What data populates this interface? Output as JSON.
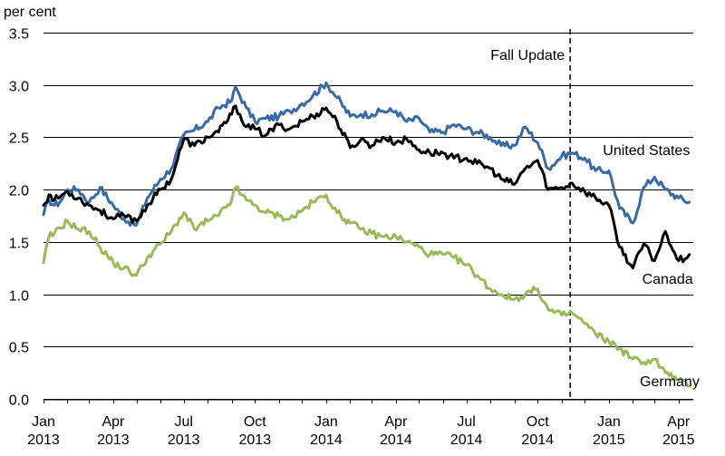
{
  "chart_data": {
    "type": "line",
    "title": "",
    "ylabel": "per cent",
    "xlabel": "",
    "ylim": [
      0,
      3.5
    ],
    "y_ticks": [
      "0.0",
      "0.5",
      "1.0",
      "1.5",
      "2.0",
      "2.5",
      "3.0",
      "3.5"
    ],
    "y_tick_values": [
      0,
      0.5,
      1.0,
      1.5,
      2.0,
      2.5,
      3.0,
      3.5
    ],
    "grid": "horizontal",
    "x_range": [
      "2013-01",
      "2015-04"
    ],
    "x_ticks": [
      {
        "month": "Jan",
        "year": "2013",
        "date": "2013-01"
      },
      {
        "month": "Apr",
        "year": "2013",
        "date": "2013-04"
      },
      {
        "month": "Jul",
        "year": "2013",
        "date": "2013-07"
      },
      {
        "month": "Oct",
        "year": "2013",
        "date": "2013-10"
      },
      {
        "month": "Jan",
        "year": "2014",
        "date": "2014-01"
      },
      {
        "month": "Apr",
        "year": "2014",
        "date": "2014-04"
      },
      {
        "month": "Jul",
        "year": "2014",
        "date": "2014-07"
      },
      {
        "month": "Oct",
        "year": "2014",
        "date": "2014-10"
      },
      {
        "month": "Jan",
        "year": "2015",
        "date": "2015-01"
      },
      {
        "month": "Apr",
        "year": "2015",
        "date": "2015-04"
      }
    ],
    "annotation": {
      "label": "Fall Update",
      "date": "2014-11-12"
    },
    "series": [
      {
        "name": "United States",
        "color": "#3a6aa6",
        "points": [
          [
            "2013-01-01",
            1.76
          ],
          [
            "2013-01-08",
            1.9
          ],
          [
            "2013-01-15",
            1.85
          ],
          [
            "2013-01-22",
            1.88
          ],
          [
            "2013-02-01",
            2.0
          ],
          [
            "2013-02-15",
            2.0
          ],
          [
            "2013-03-01",
            1.88
          ],
          [
            "2013-03-15",
            2.02
          ],
          [
            "2013-04-01",
            1.85
          ],
          [
            "2013-04-15",
            1.72
          ],
          [
            "2013-05-01",
            1.66
          ],
          [
            "2013-05-15",
            1.92
          ],
          [
            "2013-06-01",
            2.1
          ],
          [
            "2013-06-15",
            2.2
          ],
          [
            "2013-07-01",
            2.52
          ],
          [
            "2013-07-15",
            2.57
          ],
          [
            "2013-08-01",
            2.65
          ],
          [
            "2013-08-15",
            2.78
          ],
          [
            "2013-09-01",
            2.85
          ],
          [
            "2013-09-06",
            2.98
          ],
          [
            "2013-09-20",
            2.78
          ],
          [
            "2013-10-01",
            2.65
          ],
          [
            "2013-10-15",
            2.68
          ],
          [
            "2013-11-01",
            2.7
          ],
          [
            "2013-11-15",
            2.75
          ],
          [
            "2013-12-01",
            2.82
          ],
          [
            "2013-12-15",
            2.9
          ],
          [
            "2014-01-01",
            3.02
          ],
          [
            "2014-01-15",
            2.88
          ],
          [
            "2014-02-01",
            2.7
          ],
          [
            "2014-02-15",
            2.72
          ],
          [
            "2014-03-01",
            2.72
          ],
          [
            "2014-03-15",
            2.75
          ],
          [
            "2014-04-01",
            2.75
          ],
          [
            "2014-04-15",
            2.65
          ],
          [
            "2014-05-01",
            2.68
          ],
          [
            "2014-05-15",
            2.55
          ],
          [
            "2014-06-01",
            2.55
          ],
          [
            "2014-06-15",
            2.62
          ],
          [
            "2014-07-01",
            2.58
          ],
          [
            "2014-07-15",
            2.55
          ],
          [
            "2014-08-01",
            2.5
          ],
          [
            "2014-08-15",
            2.42
          ],
          [
            "2014-09-01",
            2.42
          ],
          [
            "2014-09-15",
            2.6
          ],
          [
            "2014-10-01",
            2.45
          ],
          [
            "2014-10-15",
            2.2
          ],
          [
            "2014-11-01",
            2.32
          ],
          [
            "2014-11-15",
            2.35
          ],
          [
            "2014-12-01",
            2.3
          ],
          [
            "2014-12-15",
            2.18
          ],
          [
            "2015-01-01",
            2.18
          ],
          [
            "2015-01-15",
            1.82
          ],
          [
            "2015-02-01",
            1.68
          ],
          [
            "2015-02-15",
            2.02
          ],
          [
            "2015-03-01",
            2.12
          ],
          [
            "2015-03-15",
            2.0
          ],
          [
            "2015-04-01",
            1.92
          ],
          [
            "2015-04-15",
            1.88
          ]
        ]
      },
      {
        "name": "Canada",
        "color": "#000000",
        "points": [
          [
            "2013-01-01",
            1.85
          ],
          [
            "2013-01-08",
            1.95
          ],
          [
            "2013-01-15",
            1.9
          ],
          [
            "2013-02-01",
            1.98
          ],
          [
            "2013-02-15",
            1.92
          ],
          [
            "2013-03-01",
            1.85
          ],
          [
            "2013-03-15",
            1.8
          ],
          [
            "2013-04-01",
            1.72
          ],
          [
            "2013-04-15",
            1.75
          ],
          [
            "2013-05-01",
            1.7
          ],
          [
            "2013-05-15",
            1.85
          ],
          [
            "2013-06-01",
            2.0
          ],
          [
            "2013-06-15",
            2.1
          ],
          [
            "2013-07-01",
            2.48
          ],
          [
            "2013-07-15",
            2.42
          ],
          [
            "2013-08-01",
            2.5
          ],
          [
            "2013-08-15",
            2.55
          ],
          [
            "2013-09-01",
            2.72
          ],
          [
            "2013-09-06",
            2.8
          ],
          [
            "2013-09-20",
            2.6
          ],
          [
            "2013-10-01",
            2.58
          ],
          [
            "2013-10-15",
            2.52
          ],
          [
            "2013-11-01",
            2.62
          ],
          [
            "2013-11-15",
            2.58
          ],
          [
            "2013-12-01",
            2.65
          ],
          [
            "2013-12-15",
            2.7
          ],
          [
            "2014-01-01",
            2.78
          ],
          [
            "2014-01-15",
            2.65
          ],
          [
            "2014-02-01",
            2.4
          ],
          [
            "2014-02-15",
            2.48
          ],
          [
            "2014-03-01",
            2.42
          ],
          [
            "2014-03-15",
            2.5
          ],
          [
            "2014-04-01",
            2.45
          ],
          [
            "2014-04-15",
            2.48
          ],
          [
            "2014-05-01",
            2.38
          ],
          [
            "2014-05-15",
            2.35
          ],
          [
            "2014-06-01",
            2.35
          ],
          [
            "2014-06-15",
            2.3
          ],
          [
            "2014-07-01",
            2.3
          ],
          [
            "2014-07-15",
            2.25
          ],
          [
            "2014-08-01",
            2.2
          ],
          [
            "2014-08-15",
            2.1
          ],
          [
            "2014-09-01",
            2.05
          ],
          [
            "2014-09-15",
            2.2
          ],
          [
            "2014-10-01",
            2.28
          ],
          [
            "2014-10-15",
            2.0
          ],
          [
            "2014-11-01",
            2.02
          ],
          [
            "2014-11-15",
            2.06
          ],
          [
            "2014-12-01",
            1.98
          ],
          [
            "2014-12-15",
            1.92
          ],
          [
            "2015-01-01",
            1.85
          ],
          [
            "2015-01-15",
            1.45
          ],
          [
            "2015-02-01",
            1.25
          ],
          [
            "2015-02-15",
            1.48
          ],
          [
            "2015-03-01",
            1.32
          ],
          [
            "2015-03-15",
            1.6
          ],
          [
            "2015-04-01",
            1.32
          ],
          [
            "2015-04-15",
            1.38
          ]
        ]
      },
      {
        "name": "Germany",
        "color": "#9aba5a",
        "points": [
          [
            "2013-01-01",
            1.3
          ],
          [
            "2013-01-08",
            1.55
          ],
          [
            "2013-01-15",
            1.58
          ],
          [
            "2013-02-01",
            1.7
          ],
          [
            "2013-02-15",
            1.62
          ],
          [
            "2013-03-01",
            1.6
          ],
          [
            "2013-03-15",
            1.45
          ],
          [
            "2013-04-01",
            1.3
          ],
          [
            "2013-04-15",
            1.25
          ],
          [
            "2013-05-01",
            1.18
          ],
          [
            "2013-05-15",
            1.35
          ],
          [
            "2013-06-01",
            1.48
          ],
          [
            "2013-06-15",
            1.6
          ],
          [
            "2013-07-01",
            1.78
          ],
          [
            "2013-07-15",
            1.62
          ],
          [
            "2013-08-01",
            1.7
          ],
          [
            "2013-08-15",
            1.75
          ],
          [
            "2013-09-01",
            1.9
          ],
          [
            "2013-09-06",
            2.02
          ],
          [
            "2013-09-20",
            1.9
          ],
          [
            "2013-10-01",
            1.85
          ],
          [
            "2013-10-15",
            1.78
          ],
          [
            "2013-11-01",
            1.75
          ],
          [
            "2013-11-15",
            1.72
          ],
          [
            "2013-12-01",
            1.8
          ],
          [
            "2013-12-15",
            1.88
          ],
          [
            "2014-01-01",
            1.95
          ],
          [
            "2014-01-15",
            1.78
          ],
          [
            "2014-02-01",
            1.68
          ],
          [
            "2014-02-15",
            1.62
          ],
          [
            "2014-03-01",
            1.58
          ],
          [
            "2014-03-15",
            1.55
          ],
          [
            "2014-04-01",
            1.55
          ],
          [
            "2014-04-15",
            1.5
          ],
          [
            "2014-05-01",
            1.45
          ],
          [
            "2014-05-15",
            1.38
          ],
          [
            "2014-06-01",
            1.38
          ],
          [
            "2014-06-15",
            1.35
          ],
          [
            "2014-07-01",
            1.28
          ],
          [
            "2014-07-15",
            1.18
          ],
          [
            "2014-08-01",
            1.05
          ],
          [
            "2014-08-15",
            1.0
          ],
          [
            "2014-09-01",
            0.95
          ],
          [
            "2014-09-15",
            1.0
          ],
          [
            "2014-10-01",
            1.05
          ],
          [
            "2014-10-15",
            0.85
          ],
          [
            "2014-11-01",
            0.8
          ],
          [
            "2014-11-15",
            0.82
          ],
          [
            "2014-12-01",
            0.72
          ],
          [
            "2014-12-15",
            0.62
          ],
          [
            "2015-01-01",
            0.55
          ],
          [
            "2015-01-15",
            0.48
          ],
          [
            "2015-02-01",
            0.38
          ],
          [
            "2015-02-15",
            0.35
          ],
          [
            "2015-03-01",
            0.38
          ],
          [
            "2015-03-15",
            0.25
          ],
          [
            "2015-04-01",
            0.18
          ],
          [
            "2015-04-15",
            0.12
          ]
        ]
      }
    ]
  }
}
